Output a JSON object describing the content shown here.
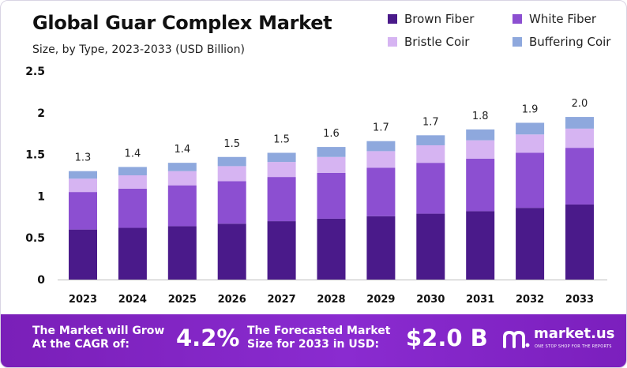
{
  "title": "Global Guar Complex Market",
  "subtitle": "Size, by Type, 2023-2033 (USD Billion)",
  "colors": {
    "brown_fiber": "#4a1a8a",
    "white_fiber": "#8c4fd1",
    "bristle_coir": "#d6b4f2",
    "buffering_coir": "#8ea8dd",
    "footer": "#7b1fbd"
  },
  "legend": [
    "Brown Fiber",
    "White Fiber",
    "Bristle Coir",
    "Buffering Coir"
  ],
  "chart_data": {
    "type": "bar",
    "stacked": true,
    "title": "Global Guar Complex Market",
    "subtitle": "Size, by Type, 2023-2033 (USD Billion)",
    "categories": [
      "2023",
      "2024",
      "2025",
      "2026",
      "2027",
      "2028",
      "2029",
      "2030",
      "2031",
      "2032",
      "2033"
    ],
    "series": [
      {
        "name": "Brown Fiber",
        "values": [
          0.6,
          0.62,
          0.64,
          0.67,
          0.7,
          0.73,
          0.76,
          0.79,
          0.82,
          0.86,
          0.9
        ]
      },
      {
        "name": "White Fiber",
        "values": [
          0.45,
          0.47,
          0.49,
          0.51,
          0.53,
          0.55,
          0.58,
          0.61,
          0.63,
          0.66,
          0.68
        ]
      },
      {
        "name": "Bristle Coir",
        "values": [
          0.16,
          0.16,
          0.17,
          0.18,
          0.18,
          0.19,
          0.2,
          0.21,
          0.22,
          0.22,
          0.23
        ]
      },
      {
        "name": "Buffering Coir",
        "values": [
          0.09,
          0.1,
          0.1,
          0.11,
          0.11,
          0.12,
          0.12,
          0.12,
          0.13,
          0.14,
          0.14
        ]
      }
    ],
    "totals": [
      "1.3",
      "1.4",
      "1.4",
      "1.5",
      "1.5",
      "1.6",
      "1.7",
      "1.7",
      "1.8",
      "1.9",
      "2.0"
    ],
    "yticks": [
      "0",
      "0.5",
      "1",
      "1.5",
      "2",
      "2.5"
    ],
    "ylim": [
      0,
      2.5
    ],
    "xlabel": "",
    "ylabel": "",
    "grid": false,
    "legend_position": "top-right"
  },
  "footer": {
    "cagr_label_line1": "The Market will Grow",
    "cagr_label_line2": "At the CAGR of:",
    "cagr_value": "4.2%",
    "forecast_label_line1": "The Forecasted Market",
    "forecast_label_line2": "Size for 2033 in USD:",
    "forecast_value": "$2.0 B",
    "brand_name": "market.us",
    "brand_tagline": "ONE STOP SHOP FOR THE REPORTS"
  }
}
